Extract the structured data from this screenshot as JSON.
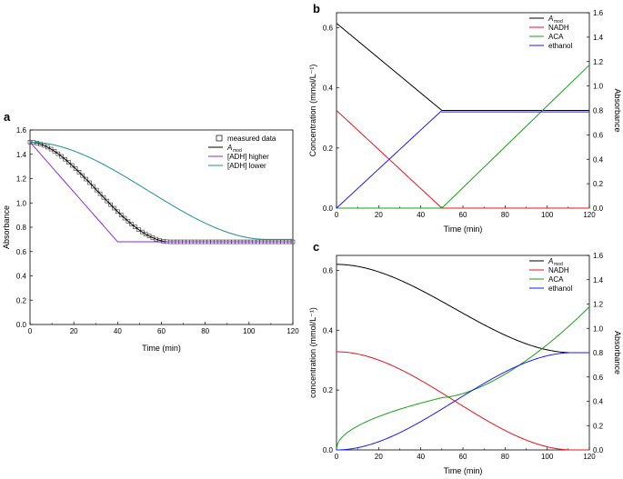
{
  "chart_data": [
    {
      "panel": "a",
      "type": "line",
      "xlabel": "Time (min)",
      "ylabel": "Absorbance",
      "xlim": [
        0,
        120
      ],
      "ylim": [
        0,
        1.6
      ],
      "xticks": [
        0,
        20,
        40,
        60,
        80,
        100,
        120
      ],
      "yticks": [
        "0.0",
        "0.2",
        "0.4",
        "0.6",
        "0.8",
        "1.0",
        "1.2",
        "1.4",
        "1.6"
      ],
      "legend_position": "top-right",
      "series": [
        {
          "name": "measured data",
          "style": "square-markers",
          "color": "#000000"
        },
        {
          "name": "A_mod",
          "label": "A",
          "subscript": "mod",
          "style": "line",
          "color": "#000000"
        },
        {
          "name": "[ADH] higher",
          "style": "line",
          "color": "#8a2be2"
        },
        {
          "name": "[ADH] lower",
          "style": "line",
          "color": "#1e9090"
        }
      ]
    },
    {
      "panel": "b",
      "type": "line",
      "xlabel": "Time (min)",
      "ylabel": "Concentration (mmol/L⁻¹)",
      "y2label": "Absorbance",
      "xlim": [
        0,
        120
      ],
      "ylim": [
        0,
        0.65
      ],
      "y2lim": [
        0,
        1.6
      ],
      "xticks": [
        0,
        20,
        40,
        60,
        80,
        100,
        120
      ],
      "yticks": [
        "0.0",
        "0.2",
        "0.4",
        "0.6"
      ],
      "y2ticks": [
        "0.0",
        "0.2",
        "0.4",
        "0.6",
        "0.8",
        "1.0",
        "1.2",
        "1.4",
        "1.6"
      ],
      "legend_position": "top-right",
      "series": [
        {
          "name": "A_mod",
          "label": "A",
          "subscript": "mod",
          "color": "#000000"
        },
        {
          "name": "NADH",
          "color": "#e8141e"
        },
        {
          "name": "ACA",
          "color": "#1aa01a"
        },
        {
          "name": "ethanol",
          "color": "#1a1aff"
        }
      ]
    },
    {
      "panel": "c",
      "type": "line",
      "xlabel": "Time (min)",
      "ylabel": "concentration (mmol/L⁻¹)",
      "y2label": "Absorbance",
      "xlim": [
        0,
        120
      ],
      "ylim": [
        0,
        0.65
      ],
      "y2lim": [
        0,
        1.6
      ],
      "xticks": [
        0,
        20,
        40,
        60,
        80,
        100,
        120
      ],
      "yticks": [
        "0.0",
        "0.2",
        "0.4",
        "0.6"
      ],
      "y2ticks": [
        "0.0",
        "0.2",
        "0.4",
        "0.6",
        "0.8",
        "1.0",
        "1.2",
        "1.4",
        "1.6"
      ],
      "legend_position": "top-right",
      "series": [
        {
          "name": "A_mod",
          "label": "A",
          "subscript": "mod",
          "color": "#000000"
        },
        {
          "name": "NADH",
          "color": "#e8141e"
        },
        {
          "name": "ACA",
          "color": "#1aa01a"
        },
        {
          "name": "ethanol",
          "color": "#1a1aff"
        }
      ]
    }
  ]
}
